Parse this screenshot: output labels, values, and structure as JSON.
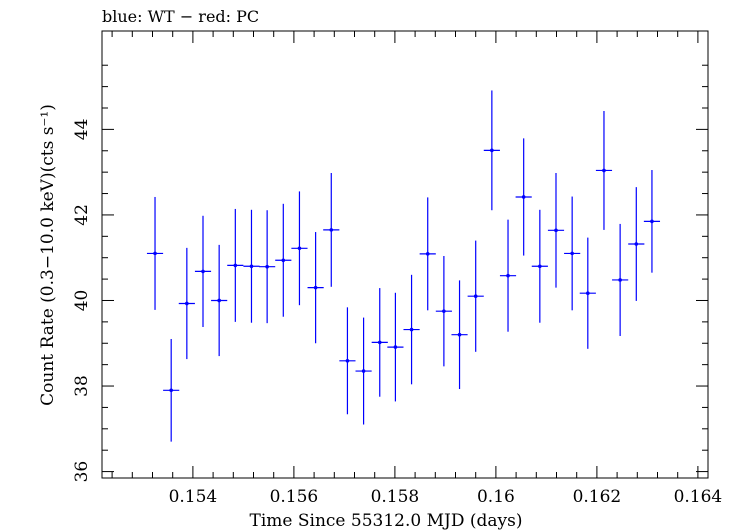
{
  "chart_data": {
    "type": "scatter",
    "title": "blue: WT − red: PC",
    "xlabel": "Time Since 55312.0 MJD (days)",
    "ylabel": "Count Rate (0.3−10.0 keV)(cts s⁻¹)",
    "xlim": [
      0.1522,
      0.1642
    ],
    "ylim": [
      35.85,
      46.3
    ],
    "x_ticks": [
      {
        "value": 0.154,
        "label": "0.154"
      },
      {
        "value": 0.156,
        "label": "0.156"
      },
      {
        "value": 0.158,
        "label": "0.158"
      },
      {
        "value": 0.16,
        "label": "0.16"
      },
      {
        "value": 0.162,
        "label": "0.162"
      },
      {
        "value": 0.164,
        "label": "0.164"
      }
    ],
    "y_ticks": [
      {
        "value": 36,
        "label": "36"
      },
      {
        "value": 38,
        "label": "38"
      },
      {
        "value": 40,
        "label": "40"
      },
      {
        "value": 42,
        "label": "42"
      },
      {
        "value": 44,
        "label": "44"
      }
    ],
    "grid": false,
    "series": [
      {
        "name": "WT",
        "color": "#0000ff",
        "x_err": 0.00016,
        "points": [
          {
            "x": 0.15325,
            "y": 41.1,
            "err": 1.32
          },
          {
            "x": 0.15357,
            "y": 37.9,
            "err": 1.2
          },
          {
            "x": 0.15388,
            "y": 39.93,
            "err": 1.3
          },
          {
            "x": 0.1542,
            "y": 40.68,
            "err": 1.3
          },
          {
            "x": 0.15452,
            "y": 40.0,
            "err": 1.3
          },
          {
            "x": 0.15484,
            "y": 40.82,
            "err": 1.32
          },
          {
            "x": 0.15516,
            "y": 40.8,
            "err": 1.32
          },
          {
            "x": 0.15547,
            "y": 40.79,
            "err": 1.32
          },
          {
            "x": 0.15579,
            "y": 40.94,
            "err": 1.32
          },
          {
            "x": 0.15611,
            "y": 41.22,
            "err": 1.33
          },
          {
            "x": 0.15643,
            "y": 40.3,
            "err": 1.3
          },
          {
            "x": 0.15674,
            "y": 41.65,
            "err": 1.33
          },
          {
            "x": 0.15706,
            "y": 38.59,
            "err": 1.25
          },
          {
            "x": 0.15738,
            "y": 38.35,
            "err": 1.25
          },
          {
            "x": 0.1577,
            "y": 39.02,
            "err": 1.27
          },
          {
            "x": 0.15801,
            "y": 38.91,
            "err": 1.27
          },
          {
            "x": 0.15833,
            "y": 39.32,
            "err": 1.28
          },
          {
            "x": 0.15865,
            "y": 41.09,
            "err": 1.32
          },
          {
            "x": 0.15897,
            "y": 39.75,
            "err": 1.29
          },
          {
            "x": 0.15928,
            "y": 39.2,
            "err": 1.27
          },
          {
            "x": 0.1596,
            "y": 40.1,
            "err": 1.3
          },
          {
            "x": 0.15992,
            "y": 43.51,
            "err": 1.4
          },
          {
            "x": 0.16024,
            "y": 40.58,
            "err": 1.31
          },
          {
            "x": 0.16055,
            "y": 42.42,
            "err": 1.37
          },
          {
            "x": 0.16087,
            "y": 40.8,
            "err": 1.32
          },
          {
            "x": 0.16119,
            "y": 41.64,
            "err": 1.34
          },
          {
            "x": 0.16151,
            "y": 41.1,
            "err": 1.33
          },
          {
            "x": 0.16182,
            "y": 40.17,
            "err": 1.3
          },
          {
            "x": 0.16214,
            "y": 43.04,
            "err": 1.39
          },
          {
            "x": 0.16246,
            "y": 40.48,
            "err": 1.31
          },
          {
            "x": 0.16278,
            "y": 41.32,
            "err": 1.33
          },
          {
            "x": 0.16309,
            "y": 41.85,
            "err": 1.2
          }
        ]
      }
    ]
  }
}
